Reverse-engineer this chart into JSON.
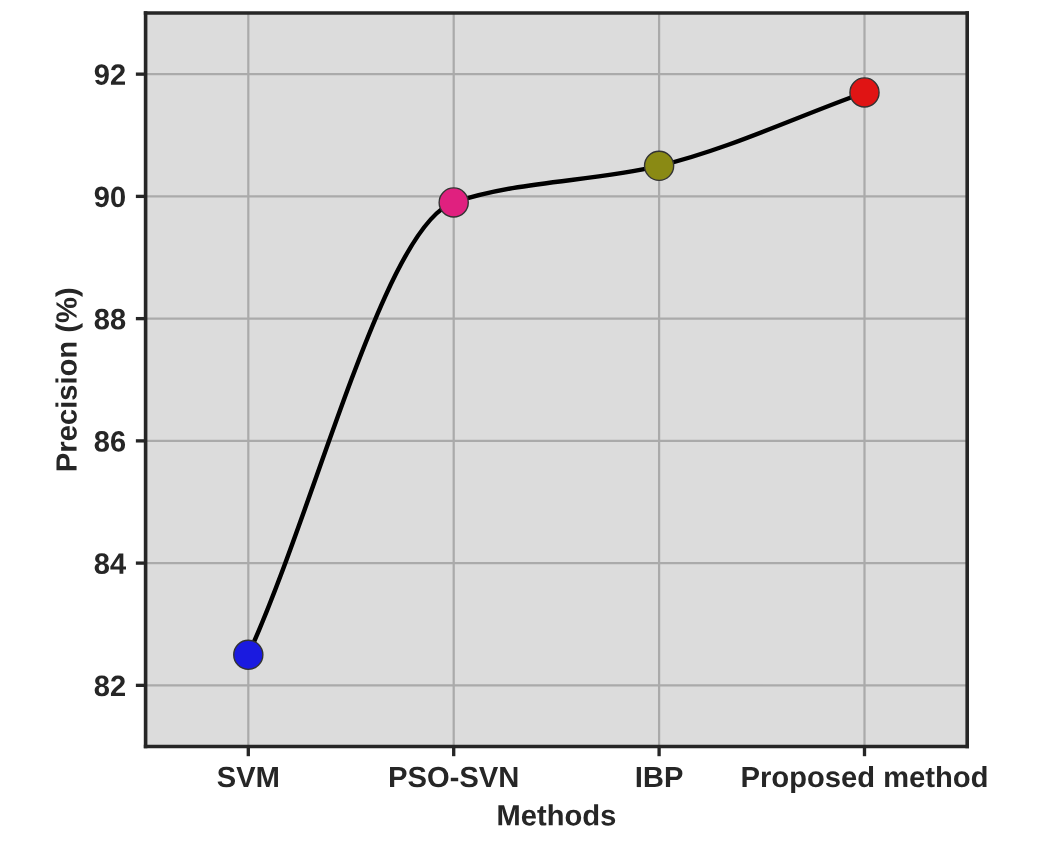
{
  "chart_data": {
    "type": "line",
    "xlabel": "Methods",
    "ylabel": "Precision (%)",
    "categories": [
      "SVM",
      "PSO-SVN",
      "IBP",
      "Proposed method"
    ],
    "series": [
      {
        "color": "#000000",
        "colors": [
          "#1a1ae0",
          "#e0207f",
          "#8a8a14",
          "#e01414"
        ],
        "values": [
          82.5,
          89.9,
          90.5,
          91.7
        ]
      }
    ],
    "ylim": [
      81,
      93
    ],
    "yticks": [
      82,
      84,
      86,
      88,
      90,
      92
    ],
    "grid": true,
    "marker": "circle",
    "line_style": "solid"
  }
}
